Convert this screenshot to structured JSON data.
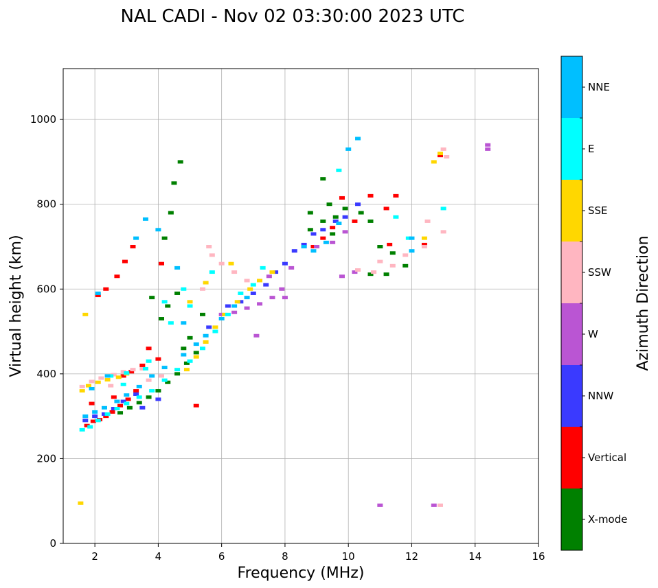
{
  "chart_data": {
    "type": "scatter",
    "title": "NAL CADI - Nov 02 03:30:00 2023 UTC",
    "xlabel": "Frequency (MHz)",
    "ylabel": "Virtual height (km)",
    "xlim": [
      1,
      16
    ],
    "ylim": [
      0,
      1120
    ],
    "xticks": [
      2,
      4,
      6,
      8,
      10,
      12,
      14,
      16
    ],
    "yticks": [
      0,
      200,
      400,
      600,
      800,
      1000
    ],
    "grid": true,
    "colorbar": {
      "label": "Azimuth Direction",
      "categories": [
        {
          "name": "NNE",
          "color": "#00bfff"
        },
        {
          "name": "E",
          "color": "#00ffff"
        },
        {
          "name": "SSE",
          "color": "#ffd700"
        },
        {
          "name": "SSW",
          "color": "#ffb6c1"
        },
        {
          "name": "W",
          "color": "#ba55d3"
        },
        {
          "name": "NNW",
          "color": "#3a3aff"
        },
        {
          "name": "Vertical",
          "color": "#ff0000"
        },
        {
          "name": "X-mode",
          "color": "#008000"
        }
      ]
    },
    "series": [
      {
        "name": "Vertical",
        "points": [
          [
            1.75,
            278
          ],
          [
            1.95,
            288
          ],
          [
            2.15,
            292
          ],
          [
            2.35,
            300
          ],
          [
            2.55,
            310
          ],
          [
            2.8,
            325
          ],
          [
            3.05,
            340
          ],
          [
            3.3,
            360
          ],
          [
            2.1,
            585
          ],
          [
            2.35,
            600
          ],
          [
            2.7,
            630
          ],
          [
            2.95,
            665
          ],
          [
            3.2,
            700
          ],
          [
            4.1,
            660
          ],
          [
            3.7,
            460
          ],
          [
            4.0,
            435
          ],
          [
            8.9,
            700
          ],
          [
            9.2,
            720
          ],
          [
            9.5,
            745
          ],
          [
            9.8,
            815
          ],
          [
            10.2,
            760
          ],
          [
            11.3,
            705
          ],
          [
            12.4,
            705
          ],
          [
            12.9,
            915
          ],
          [
            11.2,
            790
          ],
          [
            11.5,
            820
          ],
          [
            10.7,
            820
          ],
          [
            3.5,
            420
          ],
          [
            3.15,
            405
          ],
          [
            2.9,
            395
          ],
          [
            5.2,
            325
          ],
          [
            2.6,
            345
          ],
          [
            1.9,
            330
          ]
        ]
      },
      {
        "name": "X-mode",
        "points": [
          [
            2.8,
            308
          ],
          [
            3.1,
            320
          ],
          [
            3.4,
            332
          ],
          [
            3.7,
            345
          ],
          [
            4.0,
            360
          ],
          [
            4.3,
            380
          ],
          [
            4.6,
            400
          ],
          [
            4.9,
            425
          ],
          [
            5.2,
            450
          ],
          [
            4.2,
            720
          ],
          [
            4.4,
            780
          ],
          [
            4.7,
            900
          ],
          [
            4.5,
            850
          ],
          [
            4.1,
            530
          ],
          [
            4.3,
            560
          ],
          [
            4.6,
            590
          ],
          [
            3.8,
            580
          ],
          [
            8.8,
            740
          ],
          [
            9.2,
            760
          ],
          [
            9.6,
            770
          ],
          [
            9.9,
            790
          ],
          [
            10.4,
            780
          ],
          [
            10.7,
            760
          ],
          [
            11.0,
            700
          ],
          [
            11.4,
            685
          ],
          [
            11.8,
            655
          ],
          [
            11.2,
            635
          ],
          [
            10.7,
            635
          ],
          [
            9.2,
            860
          ],
          [
            9.4,
            800
          ],
          [
            8.8,
            780
          ],
          [
            9.5,
            730
          ],
          [
            5.0,
            485
          ],
          [
            4.8,
            460
          ],
          [
            5.4,
            540
          ]
        ]
      },
      {
        "name": "NNW",
        "points": [
          [
            1.7,
            290
          ],
          [
            2.0,
            300
          ],
          [
            2.3,
            305
          ],
          [
            2.6,
            318
          ],
          [
            2.9,
            335
          ],
          [
            3.3,
            352
          ],
          [
            6.2,
            560
          ],
          [
            6.6,
            570
          ],
          [
            7.0,
            590
          ],
          [
            7.4,
            610
          ],
          [
            7.7,
            640
          ],
          [
            8.0,
            660
          ],
          [
            8.3,
            690
          ],
          [
            8.6,
            705
          ],
          [
            8.9,
            730
          ],
          [
            9.2,
            740
          ],
          [
            9.6,
            760
          ],
          [
            9.9,
            770
          ],
          [
            10.3,
            800
          ],
          [
            4.0,
            340
          ],
          [
            3.5,
            320
          ],
          [
            5.6,
            510
          ]
        ]
      },
      {
        "name": "W",
        "points": [
          [
            6.4,
            545
          ],
          [
            6.8,
            555
          ],
          [
            7.2,
            565
          ],
          [
            7.6,
            580
          ],
          [
            7.9,
            600
          ],
          [
            8.2,
            650
          ],
          [
            8.6,
            700
          ],
          [
            9.0,
            700
          ],
          [
            9.5,
            710
          ],
          [
            9.9,
            735
          ],
          [
            7.5,
            630
          ],
          [
            8.0,
            580
          ],
          [
            7.1,
            490
          ],
          [
            11.0,
            90
          ],
          [
            12.7,
            90
          ],
          [
            14.4,
            930
          ],
          [
            14.4,
            940
          ],
          [
            10.2,
            640
          ],
          [
            9.8,
            630
          ],
          [
            6.0,
            540
          ]
        ]
      },
      {
        "name": "SSW",
        "points": [
          [
            1.6,
            370
          ],
          [
            1.9,
            382
          ],
          [
            2.2,
            390
          ],
          [
            2.6,
            398
          ],
          [
            2.9,
            405
          ],
          [
            3.2,
            410
          ],
          [
            3.5,
            412
          ],
          [
            5.6,
            700
          ],
          [
            5.7,
            680
          ],
          [
            6.0,
            660
          ],
          [
            6.4,
            640
          ],
          [
            6.8,
            620
          ],
          [
            10.3,
            645
          ],
          [
            10.8,
            640
          ],
          [
            11.4,
            655
          ],
          [
            12.4,
            700
          ],
          [
            12.5,
            760
          ],
          [
            13.0,
            735
          ],
          [
            13.0,
            930
          ],
          [
            13.1,
            912
          ],
          [
            12.9,
            90
          ],
          [
            11.0,
            665
          ],
          [
            11.8,
            680
          ],
          [
            3.7,
            385
          ],
          [
            2.5,
            372
          ],
          [
            4.1,
            395
          ],
          [
            5.4,
            600
          ]
        ]
      },
      {
        "name": "SSE",
        "points": [
          [
            1.6,
            360
          ],
          [
            1.8,
            372
          ],
          [
            2.1,
            380
          ],
          [
            2.4,
            386
          ],
          [
            2.75,
            392
          ],
          [
            3.0,
            400
          ],
          [
            4.9,
            410
          ],
          [
            5.2,
            440
          ],
          [
            5.5,
            475
          ],
          [
            5.8,
            510
          ],
          [
            6.1,
            540
          ],
          [
            6.5,
            570
          ],
          [
            6.9,
            600
          ],
          [
            7.2,
            620
          ],
          [
            7.6,
            640
          ],
          [
            5.0,
            570
          ],
          [
            12.4,
            720
          ],
          [
            12.7,
            900
          ],
          [
            12.9,
            920
          ],
          [
            1.55,
            95
          ],
          [
            1.7,
            540
          ],
          [
            6.3,
            660
          ],
          [
            5.5,
            615
          ]
        ]
      },
      {
        "name": "E",
        "points": [
          [
            1.6,
            268
          ],
          [
            1.85,
            275
          ],
          [
            2.1,
            290
          ],
          [
            2.4,
            305
          ],
          [
            2.7,
            318
          ],
          [
            3.0,
            330
          ],
          [
            3.4,
            345
          ],
          [
            3.8,
            360
          ],
          [
            4.2,
            385
          ],
          [
            4.6,
            410
          ],
          [
            5.0,
            430
          ],
          [
            5.4,
            460
          ],
          [
            5.8,
            500
          ],
          [
            6.2,
            540
          ],
          [
            6.6,
            590
          ],
          [
            7.0,
            610
          ],
          [
            7.3,
            650
          ],
          [
            4.4,
            520
          ],
          [
            4.2,
            570
          ],
          [
            4.8,
            600
          ],
          [
            2.5,
            395
          ],
          [
            3.0,
            402
          ],
          [
            3.6,
            412
          ],
          [
            2.9,
            375
          ],
          [
            13.0,
            790
          ],
          [
            11.5,
            770
          ],
          [
            11.9,
            720
          ],
          [
            9.7,
            880
          ],
          [
            5.7,
            640
          ],
          [
            5.0,
            560
          ],
          [
            3.7,
            430
          ]
        ]
      },
      {
        "name": "NNE",
        "points": [
          [
            1.7,
            300
          ],
          [
            2.0,
            310
          ],
          [
            2.3,
            320
          ],
          [
            2.7,
            335
          ],
          [
            3.0,
            350
          ],
          [
            3.4,
            370
          ],
          [
            3.8,
            395
          ],
          [
            4.2,
            415
          ],
          [
            4.8,
            445
          ],
          [
            5.2,
            470
          ],
          [
            5.5,
            490
          ],
          [
            6.0,
            530
          ],
          [
            6.4,
            560
          ],
          [
            6.8,
            580
          ],
          [
            8.6,
            700
          ],
          [
            8.9,
            690
          ],
          [
            9.3,
            710
          ],
          [
            9.7,
            755
          ],
          [
            10.0,
            930
          ],
          [
            10.3,
            955
          ],
          [
            3.6,
            765
          ],
          [
            3.3,
            720
          ],
          [
            2.4,
            395
          ],
          [
            1.9,
            365
          ],
          [
            12.0,
            720
          ],
          [
            12.0,
            690
          ],
          [
            4.0,
            740
          ],
          [
            4.6,
            650
          ],
          [
            4.8,
            520
          ],
          [
            2.1,
            590
          ]
        ]
      }
    ]
  }
}
